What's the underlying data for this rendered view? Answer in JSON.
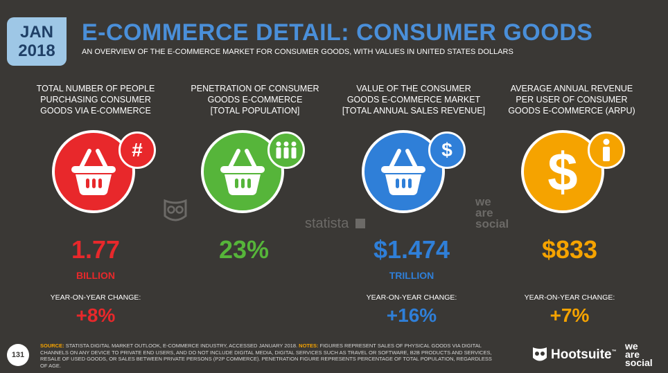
{
  "header": {
    "date_month": "JAN",
    "date_year": "2018",
    "title": "E-COMMERCE DETAIL: CONSUMER GOODS",
    "subtitle": "AN OVERVIEW OF THE E-COMMERCE MARKET FOR CONSUMER GOODS, WITH VALUES IN UNITED STATES DOLLARS"
  },
  "metrics": [
    {
      "label_lines": [
        "TOTAL NUMBER OF PEOPLE",
        "PURCHASING CONSUMER",
        "GOODS VIA E-COMMERCE"
      ],
      "value": "1.77",
      "unit": "BILLION",
      "yoy_label": "YEAR-ON-YEAR CHANGE:",
      "yoy_value": "+8%",
      "color": "#e8282b",
      "badge_icon": "hash-icon",
      "badge_text": "#"
    },
    {
      "label_lines": [
        "PENETRATION OF CONSUMER",
        "GOODS E-COMMERCE",
        "[TOTAL POPULATION]"
      ],
      "value": "23%",
      "unit": "",
      "yoy_label": "",
      "yoy_value": "",
      "color": "#56b53a",
      "badge_icon": "people-icon",
      "badge_text": ""
    },
    {
      "label_lines": [
        "VALUE OF THE CONSUMER",
        "GOODS E-COMMERCE MARKET",
        "[TOTAL ANNUAL SALES REVENUE]"
      ],
      "value": "$1.474",
      "unit": "TRILLION",
      "yoy_label": "YEAR-ON-YEAR CHANGE:",
      "yoy_value": "+16%",
      "color": "#2f7fd8",
      "badge_icon": "dollar-icon",
      "badge_text": "$"
    },
    {
      "label_lines": [
        "AVERAGE ANNUAL REVENUE",
        "PER USER OF CONSUMER",
        "GOODS E-COMMERCE (ARPU)"
      ],
      "value": "$833",
      "unit": "",
      "yoy_label": "YEAR-ON-YEAR CHANGE:",
      "yoy_value": "+7%",
      "color": "#f5a300",
      "badge_icon": "person-icon",
      "badge_text": ""
    }
  ],
  "watermarks": {
    "statista": "statista",
    "wearesocial_lines": [
      "we",
      "are",
      "social"
    ]
  },
  "footer": {
    "page_number": "131",
    "source_label": "SOURCE:",
    "source_text": "STATISTA DIGITAL MARKET OUTLOOK, E-COMMERCE INDUSTRY, ACCESSED JANUARY 2018.",
    "notes_label": "NOTES:",
    "notes_text": "FIGURES REPRESENT SALES OF PHYSICAL GOODS VIA DIGITAL CHANNELS ON ANY DEVICE TO PRIVATE END USERS, AND DO NOT INCLUDE DIGITAL MEDIA, DIGITAL SERVICES SUCH AS TRAVEL OR SOFTWARE, B2B PRODUCTS AND SERVICES, RESALE OF USED GOODS, OR SALES BETWEEN PRIVATE PERSONS (P2P COMMERCE). PENETRATION FIGURE REPRESENTS PERCENTAGE OF TOTAL POPULATION, REGARDLESS OF AGE."
  },
  "brands": {
    "hootsuite": "Hootsuite",
    "wearesocial_lines": [
      "we",
      "are",
      "social"
    ]
  }
}
